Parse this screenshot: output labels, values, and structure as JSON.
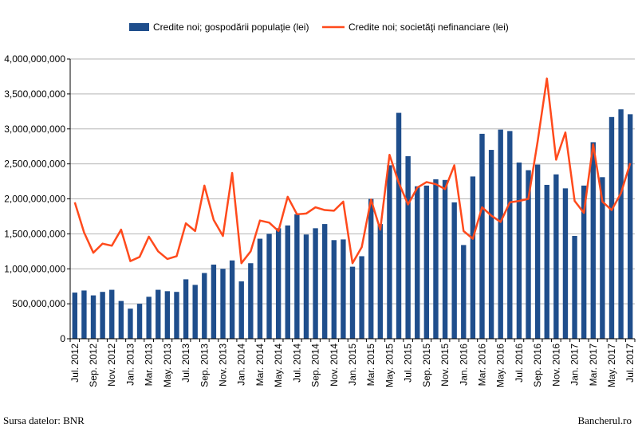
{
  "source_note": "Sursa datelor: BNR",
  "brand": "Bancherul.ro",
  "colors": {
    "households": "#1f4e8c",
    "companies": "#ff4a1c",
    "grid": "#b3b3b3",
    "axis": "#000000"
  },
  "chart_data": {
    "type": "bar",
    "title": "",
    "xlabel": "",
    "ylabel": "",
    "ylim": [
      0,
      4000000000
    ],
    "y_ticks": [
      "0",
      "500,000,000",
      "1,000,000,000",
      "1,500,000,000",
      "2,000,000,000",
      "2,500,000,000",
      "3,000,000,000",
      "3,500,000,000",
      "4,000,000,000"
    ],
    "grid": true,
    "legend_position": "top",
    "categories": [
      "Jul. 2012",
      "Aug. 2012",
      "Sep. 2012",
      "Oct. 2012",
      "Nov. 2012",
      "Dec. 2012",
      "Jan. 2013",
      "Feb. 2013",
      "Mar. 2013",
      "Apr. 2013",
      "May. 2013",
      "Jun. 2013",
      "Jul. 2013",
      "Aug. 2013",
      "Sep. 2013",
      "Oct. 2013",
      "Nov. 2013",
      "Dec. 2013",
      "Jan. 2014",
      "Feb. 2014",
      "Mar. 2014",
      "Apr. 2014",
      "May. 2014",
      "Jun. 2014",
      "Jul. 2014",
      "Aug. 2014",
      "Sep. 2014",
      "Oct. 2014",
      "Nov. 2014",
      "Dec. 2014",
      "Jan. 2015",
      "Feb. 2015",
      "Mar. 2015",
      "Apr. 2015",
      "May. 2015",
      "Jun. 2015",
      "Jul. 2015",
      "Aug. 2015",
      "Sep. 2015",
      "Oct. 2015",
      "Nov. 2015",
      "Dec. 2015",
      "Jan. 2016",
      "Feb. 2016",
      "Mar. 2016",
      "Apr. 2016",
      "May. 2016",
      "Jun. 2016",
      "Jul. 2016",
      "Aug. 2016",
      "Sep. 2016",
      "Oct. 2016",
      "Nov. 2016",
      "Dec. 2016",
      "Jan. 2017",
      "Feb. 2017",
      "Mar. 2017",
      "Apr. 2017",
      "May. 2017",
      "Jun. 2017",
      "Jul. 2017"
    ],
    "x_tick_labels": [
      "Jul. 2012",
      "Sep. 2012",
      "Nov. 2012",
      "Jan. 2013",
      "Mar. 2013",
      "May. 2013",
      "Jul. 2013",
      "Sep. 2013",
      "Nov. 2013",
      "Jan. 2014",
      "Mar. 2014",
      "May. 2014",
      "Jul. 2014",
      "Sep. 2014",
      "Nov. 2014",
      "Jan. 2015",
      "Mar. 2015",
      "May. 2015",
      "Jul. 2015",
      "Sep. 2015",
      "Nov. 2015",
      "Jan. 2016",
      "Mar. 2016",
      "May. 2016",
      "Jul. 2016",
      "Sep. 2016",
      "Nov. 2016",
      "Jan. 2017",
      "Mar. 2017",
      "May. 2017",
      "Jul. 2017"
    ],
    "series": [
      {
        "name": "Credite noi; gospodării populaţie (lei)",
        "type": "bar",
        "values": [
          660000000,
          690000000,
          620000000,
          670000000,
          700000000,
          540000000,
          430000000,
          500000000,
          600000000,
          700000000,
          680000000,
          670000000,
          850000000,
          770000000,
          940000000,
          1060000000,
          1000000000,
          1120000000,
          820000000,
          1080000000,
          1430000000,
          1500000000,
          1580000000,
          1620000000,
          1780000000,
          1490000000,
          1580000000,
          1640000000,
          1410000000,
          1420000000,
          1030000000,
          1180000000,
          2000000000,
          1640000000,
          2480000000,
          3230000000,
          2610000000,
          2180000000,
          2190000000,
          2280000000,
          2270000000,
          1950000000,
          1340000000,
          2320000000,
          2930000000,
          2700000000,
          2990000000,
          2970000000,
          2520000000,
          2410000000,
          2490000000,
          2200000000,
          2350000000,
          2150000000,
          1470000000,
          2190000000,
          2810000000,
          2310000000,
          3170000000,
          3280000000,
          3210000000
        ]
      },
      {
        "name": "Credite noi; societăţi nefinanciare (lei)",
        "type": "line",
        "values": [
          1950000000,
          1520000000,
          1230000000,
          1360000000,
          1330000000,
          1560000000,
          1110000000,
          1170000000,
          1460000000,
          1250000000,
          1140000000,
          1180000000,
          1650000000,
          1540000000,
          2190000000,
          1700000000,
          1470000000,
          2370000000,
          1080000000,
          1250000000,
          1690000000,
          1660000000,
          1540000000,
          2030000000,
          1780000000,
          1790000000,
          1880000000,
          1840000000,
          1830000000,
          1960000000,
          1080000000,
          1310000000,
          1990000000,
          1560000000,
          2630000000,
          2230000000,
          1920000000,
          2160000000,
          2240000000,
          2210000000,
          2140000000,
          2480000000,
          1540000000,
          1430000000,
          1880000000,
          1760000000,
          1670000000,
          1950000000,
          1970000000,
          2000000000,
          2820000000,
          3720000000,
          2560000000,
          2950000000,
          1970000000,
          1800000000,
          2780000000,
          1960000000,
          1840000000,
          2080000000,
          2510000000
        ]
      }
    ]
  }
}
